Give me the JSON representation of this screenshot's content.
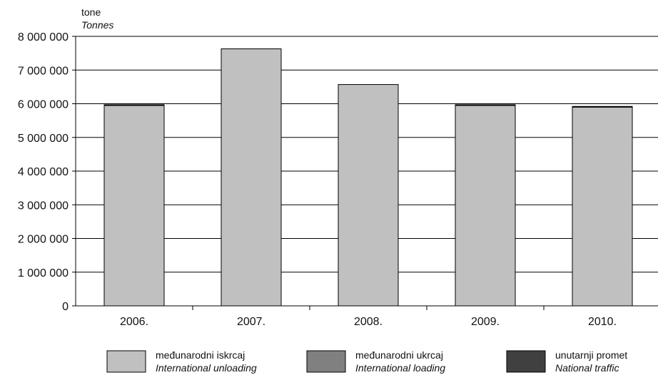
{
  "chart_data": {
    "type": "bar",
    "unit_label": "tone",
    "unit_label_en": "Tonnes",
    "categories": [
      "2006.",
      "2007.",
      "2008.",
      "2009.",
      "2010."
    ],
    "series": [
      {
        "name": "međunarodni iskrcaj",
        "name_en": "International unloading",
        "color": "#c0c0c0",
        "values": [
          5950000,
          7630000,
          6570000,
          5950000,
          5900000
        ]
      },
      {
        "name": "međunarodni ukrcaj",
        "name_en": "International loading",
        "color": "#808080",
        "values": [
          20000,
          0,
          0,
          20000,
          20000
        ]
      },
      {
        "name": "unutarnji promet",
        "name_en": "National traffic",
        "color": "#404040",
        "values": [
          0,
          0,
          0,
          0,
          0
        ]
      }
    ],
    "stacked": true,
    "ylim": [
      0,
      8000000
    ],
    "yticks": [
      0,
      1000000,
      2000000,
      3000000,
      4000000,
      5000000,
      6000000,
      7000000,
      8000000
    ],
    "ytick_labels": [
      "0",
      "1 000 000",
      "2 000 000",
      "3 000 000",
      "4 000 000",
      "5 000 000",
      "6 000 000",
      "7 000 000",
      "8 000 000"
    ],
    "grid": true,
    "legend_position": "bottom"
  }
}
